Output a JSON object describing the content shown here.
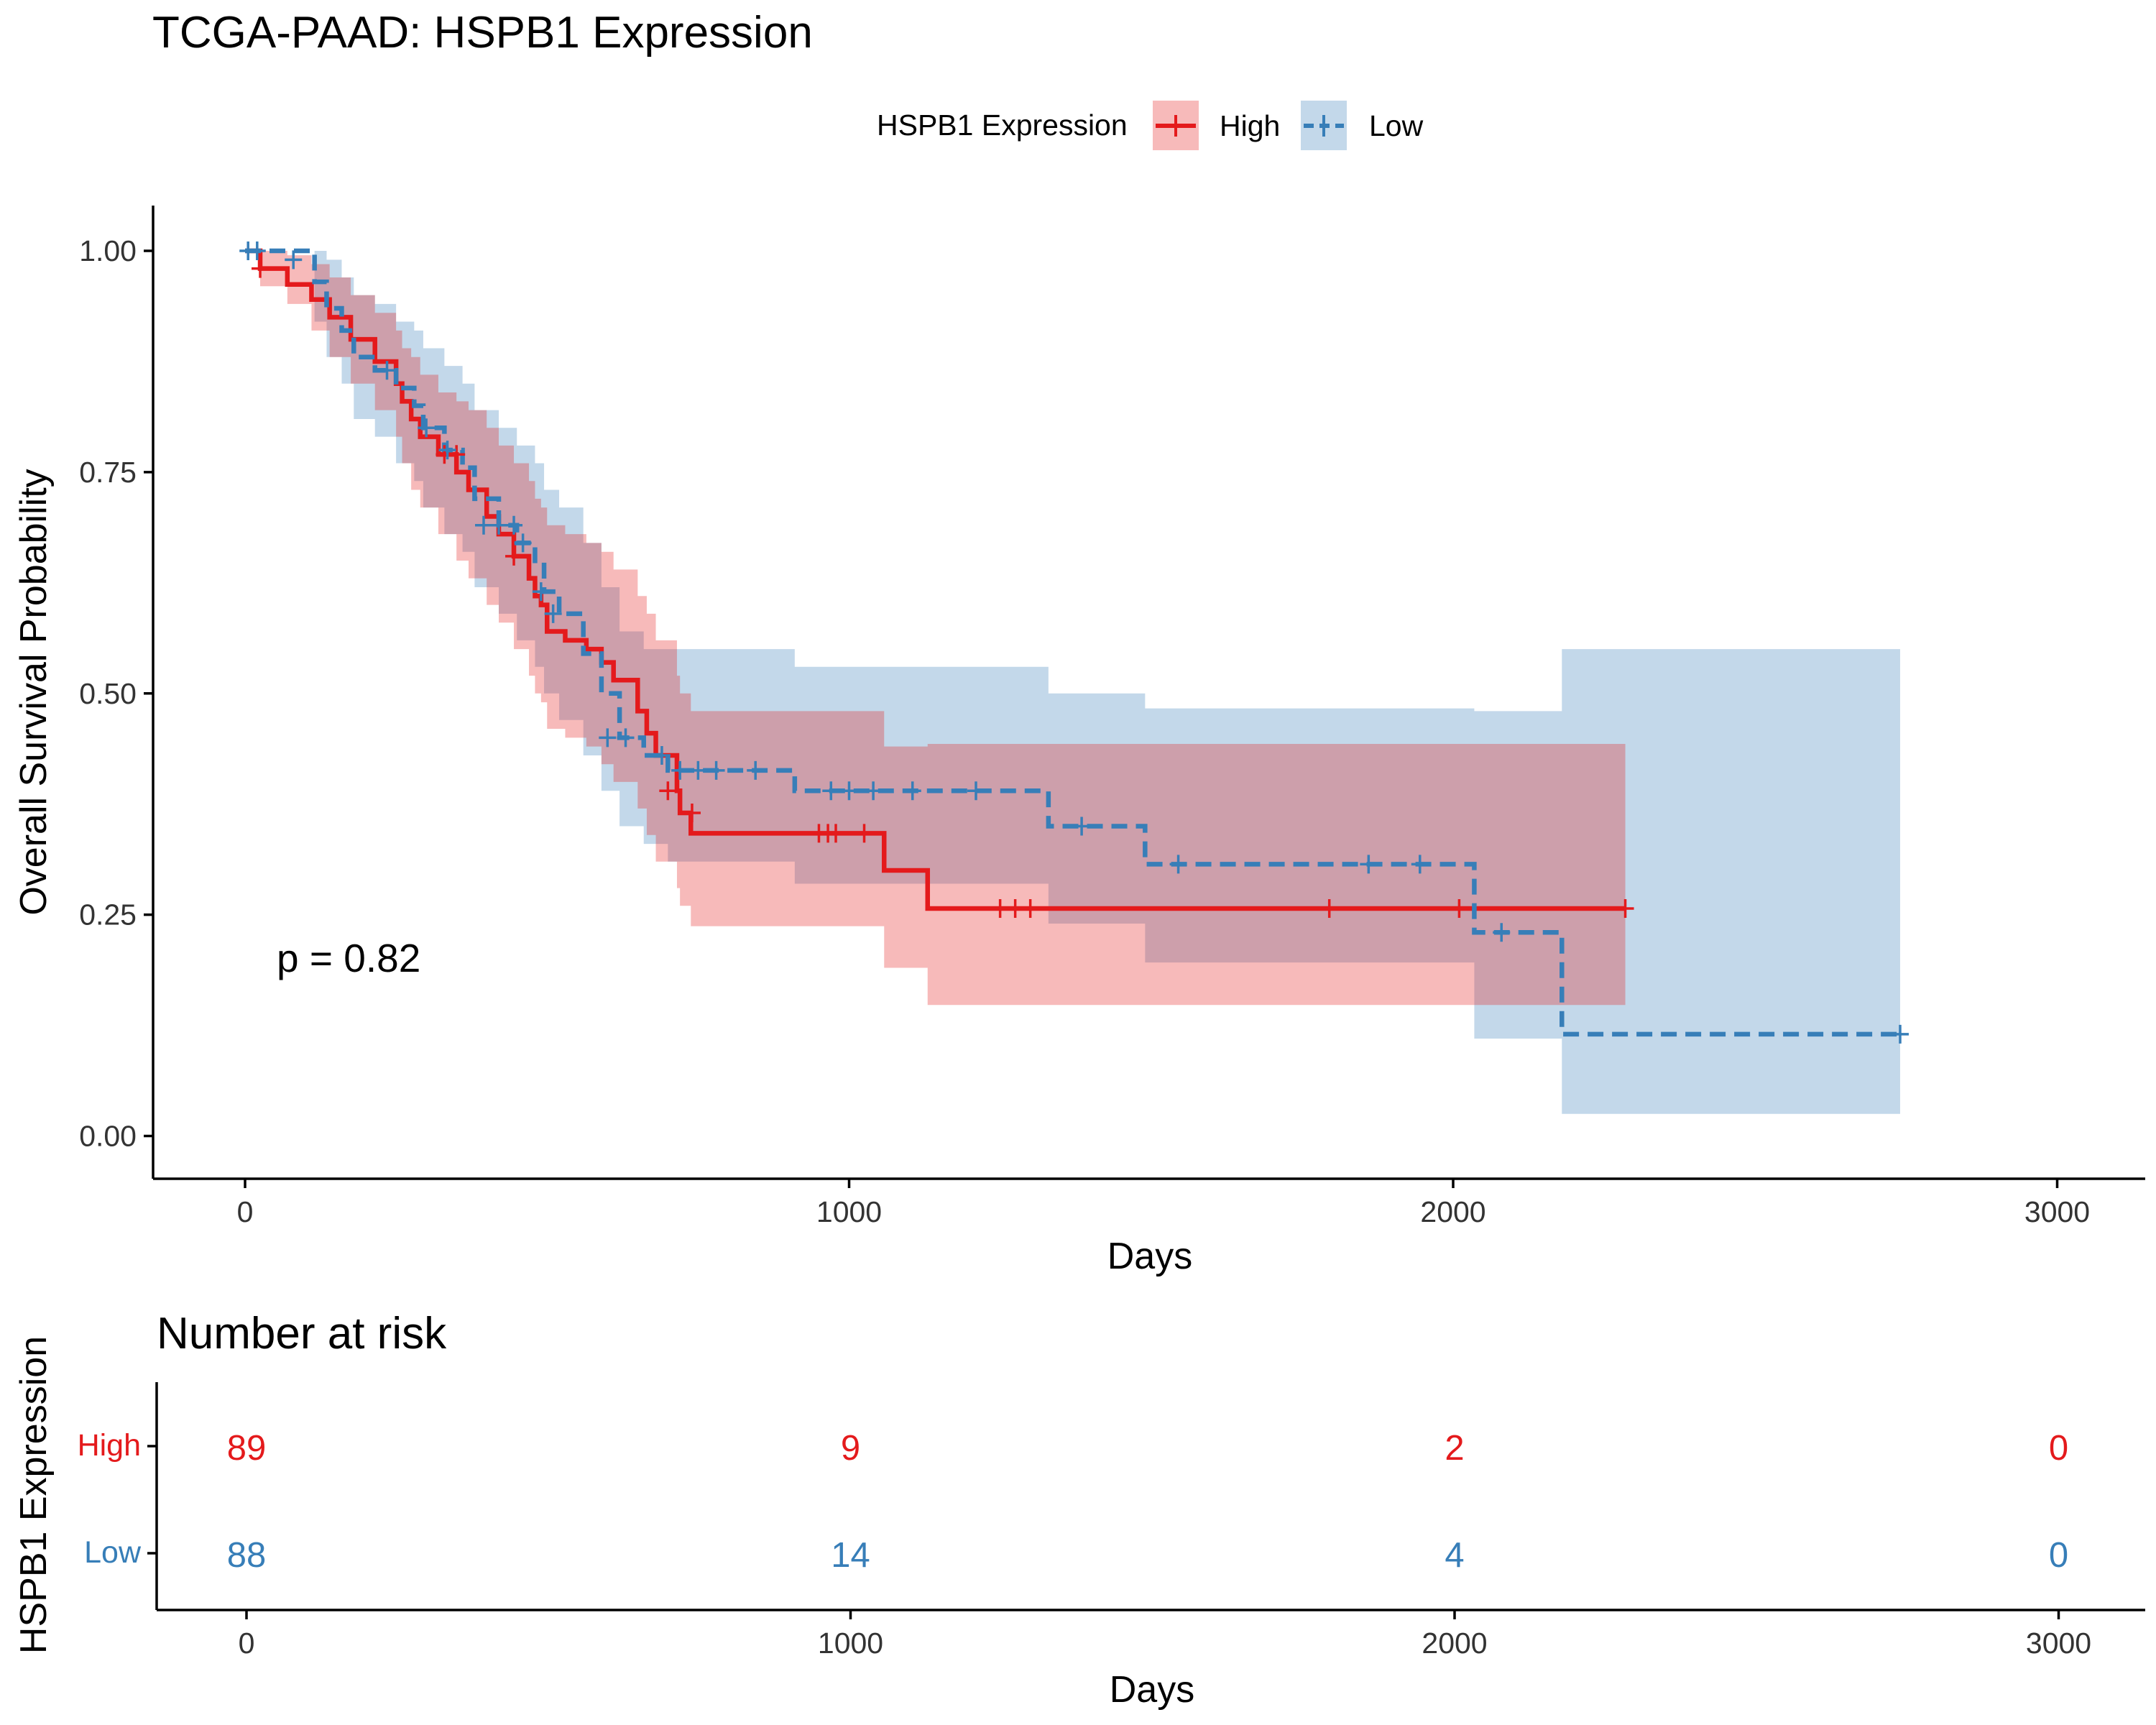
{
  "chart_data": [
    {
      "type": "line",
      "subtype": "kaplan-meier",
      "title": "TCGA-PAAD: HSPB1 Expression",
      "xlabel": "Days",
      "ylabel": "Overall Survival Probability",
      "xlim": [
        -150,
        3150
      ],
      "ylim": [
        -0.05,
        1.05
      ],
      "x_ticks": [
        0,
        1000,
        2000,
        3000
      ],
      "y_ticks": [
        0,
        0.25,
        0.5,
        0.75,
        1.0
      ],
      "y_tick_labels": [
        "0.00",
        "0.25",
        "0.50",
        "0.75",
        "1.00"
      ],
      "grid": false,
      "legend": {
        "title": "HSPB1 Expression",
        "placement": "top",
        "entries": [
          "High",
          "Low"
        ]
      },
      "annotation": "p = 0.82",
      "series": [
        {
          "name": "High",
          "color": "#E41A1C",
          "line_style": "solid",
          "x": [
            0,
            25,
            70,
            110,
            140,
            175,
            215,
            250,
            260,
            275,
            290,
            320,
            350,
            370,
            400,
            420,
            445,
            470,
            480,
            490,
            500,
            530,
            565,
            590,
            610,
            650,
            665,
            680,
            715,
            720,
            738,
            1058,
            1130,
            2285
          ],
          "y": [
            1.0,
            0.98,
            0.962,
            0.945,
            0.925,
            0.9,
            0.875,
            0.85,
            0.83,
            0.81,
            0.79,
            0.77,
            0.75,
            0.73,
            0.7,
            0.68,
            0.655,
            0.63,
            0.61,
            0.6,
            0.57,
            0.56,
            0.55,
            0.535,
            0.515,
            0.48,
            0.455,
            0.43,
            0.39,
            0.365,
            0.342,
            0.3,
            0.257,
            0.257
          ],
          "lower": [
            1.0,
            0.96,
            0.94,
            0.91,
            0.88,
            0.85,
            0.82,
            0.79,
            0.76,
            0.73,
            0.71,
            0.68,
            0.65,
            0.63,
            0.6,
            0.58,
            0.55,
            0.52,
            0.5,
            0.49,
            0.46,
            0.45,
            0.44,
            0.42,
            0.4,
            0.37,
            0.34,
            0.31,
            0.28,
            0.26,
            0.237,
            0.19,
            0.148,
            0.148
          ],
          "upper": [
            1.0,
            1.0,
            0.995,
            0.985,
            0.97,
            0.95,
            0.93,
            0.91,
            0.89,
            0.88,
            0.86,
            0.84,
            0.83,
            0.82,
            0.8,
            0.78,
            0.76,
            0.74,
            0.72,
            0.71,
            0.69,
            0.68,
            0.67,
            0.66,
            0.64,
            0.61,
            0.59,
            0.56,
            0.52,
            0.5,
            0.48,
            0.44,
            0.443,
            0.443
          ],
          "censored": [
            [
              25,
              0.98
            ],
            [
              330,
              0.77
            ],
            [
              350,
              0.77
            ],
            [
              445,
              0.655
            ],
            [
              700,
              0.39
            ],
            [
              740,
              0.365
            ],
            [
              950,
              0.342
            ],
            [
              965,
              0.342
            ],
            [
              978,
              0.342
            ],
            [
              1025,
              0.342
            ],
            [
              1250,
              0.257
            ],
            [
              1275,
              0.257
            ],
            [
              1300,
              0.257
            ],
            [
              1795,
              0.257
            ],
            [
              2010,
              0.257
            ],
            [
              2285,
              0.257
            ]
          ]
        },
        {
          "name": "Low",
          "color": "#377EB8",
          "line_style": "dashed",
          "x": [
            0,
            115,
            135,
            160,
            180,
            215,
            250,
            280,
            295,
            330,
            360,
            380,
            420,
            450,
            480,
            495,
            520,
            560,
            590,
            620,
            660,
            700,
            910,
            1330,
            1490,
            2035,
            2180,
            2740
          ],
          "y": [
            1.0,
            0.965,
            0.935,
            0.91,
            0.88,
            0.865,
            0.845,
            0.825,
            0.8,
            0.775,
            0.755,
            0.72,
            0.69,
            0.67,
            0.645,
            0.615,
            0.59,
            0.545,
            0.5,
            0.45,
            0.43,
            0.413,
            0.39,
            0.35,
            0.307,
            0.23,
            0.115,
            0.115
          ],
          "lower": [
            1.0,
            0.92,
            0.88,
            0.85,
            0.81,
            0.79,
            0.76,
            0.74,
            0.71,
            0.68,
            0.66,
            0.62,
            0.59,
            0.56,
            0.53,
            0.5,
            0.47,
            0.43,
            0.39,
            0.35,
            0.33,
            0.31,
            0.285,
            0.24,
            0.196,
            0.11,
            0.025,
            0.025
          ],
          "upper": [
            1.0,
            1.0,
            0.99,
            0.97,
            0.95,
            0.94,
            0.92,
            0.91,
            0.89,
            0.87,
            0.85,
            0.82,
            0.8,
            0.78,
            0.76,
            0.73,
            0.71,
            0.67,
            0.62,
            0.57,
            0.55,
            0.55,
            0.53,
            0.5,
            0.483,
            0.48,
            0.55,
            0.55
          ],
          "censored": [
            [
              5,
              1.0
            ],
            [
              20,
              1.0
            ],
            [
              80,
              0.99
            ],
            [
              235,
              0.865
            ],
            [
              300,
              0.8
            ],
            [
              335,
              0.775
            ],
            [
              395,
              0.69
            ],
            [
              420,
              0.69
            ],
            [
              445,
              0.69
            ],
            [
              460,
              0.67
            ],
            [
              490,
              0.615
            ],
            [
              510,
              0.59
            ],
            [
              600,
              0.45
            ],
            [
              630,
              0.45
            ],
            [
              690,
              0.43
            ],
            [
              720,
              0.413
            ],
            [
              750,
              0.413
            ],
            [
              780,
              0.413
            ],
            [
              845,
              0.413
            ],
            [
              970,
              0.39
            ],
            [
              1000,
              0.39
            ],
            [
              1040,
              0.39
            ],
            [
              1105,
              0.39
            ],
            [
              1210,
              0.39
            ],
            [
              1385,
              0.35
            ],
            [
              1545,
              0.307
            ],
            [
              1860,
              0.307
            ],
            [
              1945,
              0.307
            ],
            [
              2080,
              0.23
            ],
            [
              2740,
              0.115
            ]
          ]
        }
      ]
    },
    {
      "type": "table",
      "title": "Number at risk",
      "xlabel": "Days",
      "ylabel": "HSPB1 Expression",
      "x_ticks": [
        0,
        1000,
        2000,
        3000
      ],
      "rows": [
        {
          "label": "High",
          "color": "#E41A1C",
          "values": [
            89,
            9,
            2,
            0
          ]
        },
        {
          "label": "Low",
          "color": "#377EB8",
          "values": [
            88,
            14,
            4,
            0
          ]
        }
      ]
    }
  ]
}
